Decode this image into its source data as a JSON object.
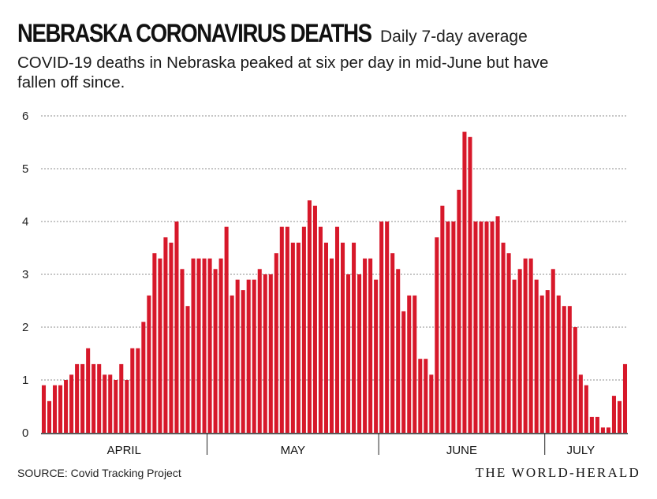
{
  "header": {
    "title": "NEBRASKA CORONAVIRUS DEATHS",
    "subtitle": "Daily 7-day average",
    "description": "COVID-19 deaths in Nebraska peaked at six per day in mid-June but have fallen off since."
  },
  "footer": {
    "source": "SOURCE: Covid Tracking Project",
    "brand": "THE WORLD-HERALD"
  },
  "colors": {
    "bar": "#d7182a",
    "grid": "#8c8c8c",
    "axis": "#222222"
  },
  "chart_data": {
    "type": "bar",
    "ylim": [
      0,
      6
    ],
    "yticks": [
      "0",
      "1",
      "2",
      "3",
      "4",
      "5",
      "6"
    ],
    "grid": true,
    "month_labels": [
      {
        "label": "APRIL",
        "start_day": 0,
        "end_day": 30
      },
      {
        "label": "MAY",
        "start_day": 30,
        "end_day": 61
      },
      {
        "label": "JUNE",
        "start_day": 61,
        "end_day": 91
      },
      {
        "label": "JULY",
        "start_day": 91,
        "end_day": 104
      }
    ],
    "values": [
      0.9,
      0.6,
      0.9,
      0.9,
      1.0,
      1.1,
      1.3,
      1.3,
      1.6,
      1.3,
      1.3,
      1.1,
      1.1,
      1.0,
      1.3,
      1.0,
      1.6,
      1.6,
      2.1,
      2.6,
      3.4,
      3.3,
      3.7,
      3.6,
      4.0,
      3.1,
      2.4,
      3.3,
      3.3,
      3.3,
      3.3,
      3.1,
      3.3,
      3.9,
      2.6,
      2.9,
      2.7,
      2.9,
      2.9,
      3.1,
      3.0,
      3.0,
      3.4,
      3.9,
      3.9,
      3.6,
      3.6,
      3.9,
      4.4,
      4.3,
      3.9,
      3.6,
      3.3,
      3.9,
      3.6,
      3.0,
      3.6,
      3.0,
      3.3,
      3.3,
      2.9,
      4.0,
      4.0,
      3.4,
      3.1,
      2.3,
      2.6,
      2.6,
      1.4,
      1.4,
      1.1,
      3.7,
      4.3,
      4.0,
      4.0,
      4.6,
      5.7,
      5.6,
      4.0,
      4.0,
      4.0,
      4.0,
      4.1,
      3.6,
      3.4,
      2.9,
      3.1,
      3.3,
      3.3,
      2.9,
      2.6,
      2.7,
      3.1,
      2.6,
      2.4,
      2.4,
      2.0,
      1.1,
      0.9,
      0.3,
      0.3,
      0.1,
      0.1,
      0.7,
      0.6,
      1.3
    ]
  }
}
